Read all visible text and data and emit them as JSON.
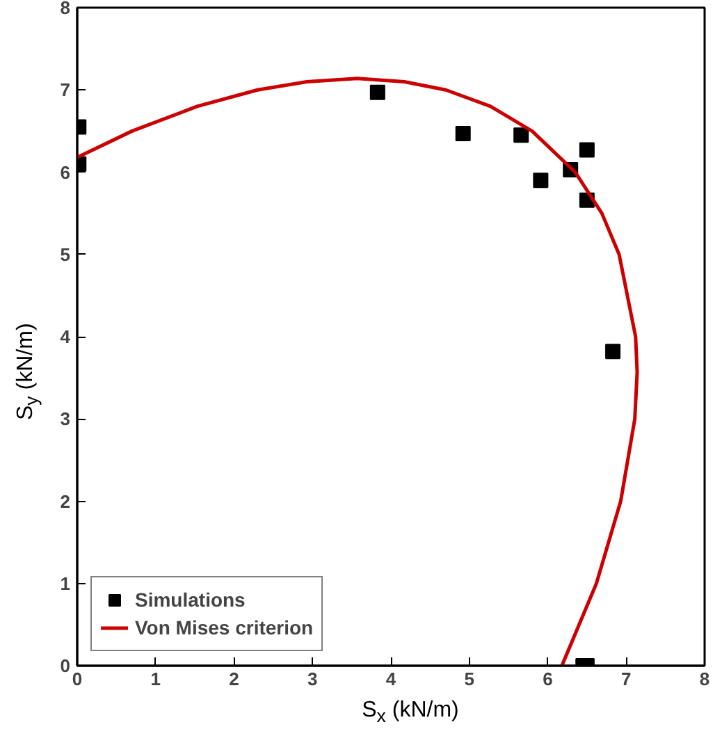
{
  "chart_data": {
    "type": "scatter",
    "xlabel": "S$_{x}$ (kN/m)",
    "ylabel": "S$_{y}$ (kN/m)",
    "xlim": [
      0,
      8
    ],
    "ylim": [
      0,
      8
    ],
    "xticks": [
      0,
      1,
      2,
      3,
      4,
      5,
      6,
      7,
      8
    ],
    "yticks": [
      0,
      1,
      2,
      3,
      4,
      5,
      6,
      7,
      8
    ],
    "grid": false,
    "legend": "bottom left",
    "marker": "square",
    "series": [
      {
        "name": "Simulations",
        "color": "#000000",
        "x": [
          0.02,
          0.02,
          3.83,
          4.92,
          5.66,
          5.91,
          6.29,
          6.5,
          6.5,
          6.83,
          6.45,
          6.5
        ],
        "values": [
          6.55,
          6.1,
          6.97,
          6.47,
          6.45,
          5.9,
          6.03,
          6.27,
          5.66,
          3.82,
          0.0,
          0.0
        ]
      },
      {
        "name": "Von Mises criterion",
        "type": "line",
        "color": "#cc0000",
        "marker": "none",
        "line_style": "solid",
        "x": [
          6.18,
          6.62,
          6.93,
          7.11,
          7.14,
          7.12,
          6.91,
          6.69,
          6.35,
          5.8,
          5.27,
          4.7,
          4.17,
          3.57,
          2.93,
          2.3,
          1.53,
          0.7,
          0.0
        ],
        "values": [
          0.0,
          1.0,
          2.0,
          3.0,
          3.57,
          4.0,
          5.0,
          5.5,
          6.0,
          6.5,
          6.8,
          7.0,
          7.1,
          7.14,
          7.1,
          7.0,
          6.8,
          6.5,
          6.18
        ]
      }
    ]
  }
}
